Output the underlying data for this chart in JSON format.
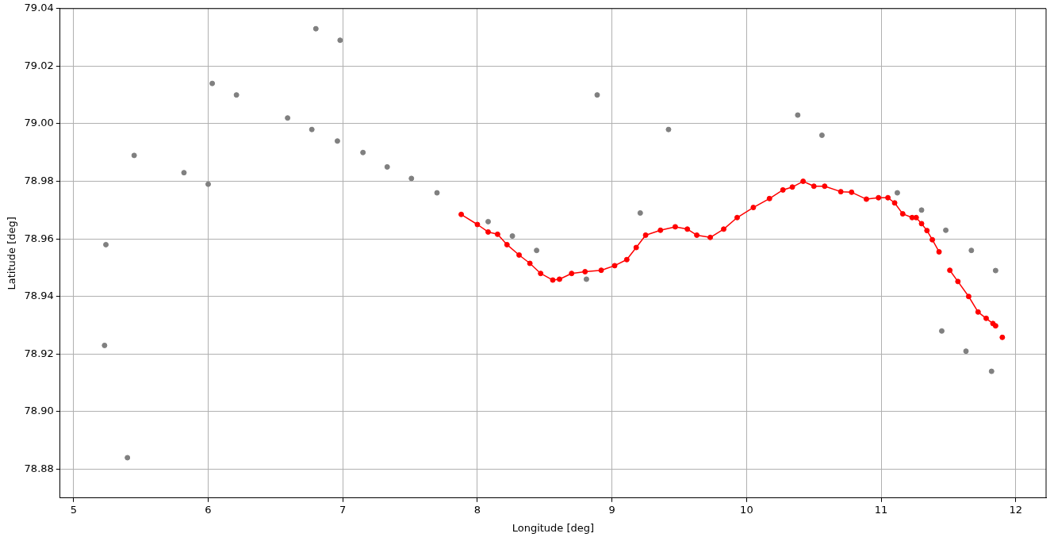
{
  "chart_data": {
    "type": "scatter",
    "xlabel": "Longitude [deg]",
    "ylabel": "Latitude [deg]",
    "xlim": [
      4.9,
      12.225
    ],
    "ylim": [
      78.87,
      79.04
    ],
    "xticks": [
      5,
      6,
      7,
      8,
      9,
      10,
      11,
      12
    ],
    "yticks": [
      {
        "value": 78.88,
        "label": "78.88"
      },
      {
        "value": 78.9,
        "label": "78.90"
      },
      {
        "value": 78.92,
        "label": "78.92"
      },
      {
        "value": 78.94,
        "label": "78.94"
      },
      {
        "value": 78.96,
        "label": "78.96"
      },
      {
        "value": 78.98,
        "label": "78.98"
      },
      {
        "value": 79.0,
        "label": "79.00"
      },
      {
        "value": 79.02,
        "label": "79.02"
      },
      {
        "value": 79.04,
        "label": "79.04"
      }
    ],
    "grid": true,
    "legend": false,
    "marker": "circle",
    "series": [
      {
        "type": "scatter",
        "color": "#808080",
        "x": [
          5.24,
          5.23,
          5.45,
          5.4,
          5.82,
          6.0,
          6.03,
          6.21,
          6.59,
          6.77,
          6.8,
          6.96,
          6.98,
          7.15,
          7.33,
          7.51,
          7.7,
          8.08,
          8.26,
          8.44,
          8.81,
          8.89,
          9.21,
          9.42,
          10.38,
          10.56,
          11.12,
          11.3,
          11.48,
          11.67,
          11.85,
          11.45,
          11.63,
          11.82
        ],
        "values": [
          78.958,
          78.923,
          78.989,
          78.884,
          78.983,
          78.979,
          79.014,
          79.01,
          79.002,
          78.998,
          79.033,
          78.994,
          79.029,
          78.99,
          78.985,
          78.981,
          78.976,
          78.966,
          78.961,
          78.956,
          78.946,
          79.01,
          78.969,
          78.998,
          79.003,
          78.996,
          78.976,
          78.97,
          78.963,
          78.956,
          78.949,
          78.928,
          78.921,
          78.914
        ]
      },
      {
        "type": "line",
        "color": "#ff0000",
        "line_style": "solid",
        "x": [
          7.88,
          8.0,
          8.08,
          8.15,
          8.22,
          8.31,
          8.39,
          8.47,
          8.56,
          8.61,
          8.7,
          8.8,
          8.92,
          9.02,
          9.11,
          9.18,
          9.25,
          9.36,
          9.47,
          9.56,
          9.63,
          9.73,
          9.83,
          9.93,
          10.05,
          10.17,
          10.27,
          10.34,
          10.42,
          10.5,
          10.58,
          10.7,
          10.78,
          10.89,
          10.98,
          11.05,
          11.1,
          11.16,
          11.23,
          11.26,
          11.3,
          11.34,
          11.38,
          11.43,
          11.47,
          11.51,
          11.57,
          11.65,
          11.72,
          11.78,
          11.83,
          11.85,
          11.875,
          11.9
        ],
        "values": [
          78.9685,
          78.965,
          78.9624,
          78.9616,
          78.958,
          78.9544,
          78.9515,
          78.948,
          78.9457,
          78.946,
          78.948,
          78.9486,
          78.9491,
          78.9507,
          78.9528,
          78.957,
          78.9613,
          78.963,
          78.9642,
          78.9634,
          78.9613,
          78.9605,
          78.9634,
          78.9674,
          78.9709,
          78.974,
          78.977,
          78.978,
          78.98,
          78.9783,
          78.9783,
          78.9764,
          78.9762,
          78.9738,
          78.9743,
          78.9743,
          78.9725,
          78.9687,
          78.9674,
          78.9674,
          78.9653,
          78.9629,
          78.9597,
          78.9555,
          null,
          78.9491,
          78.9452,
          78.94,
          78.9346,
          78.9324,
          78.9306,
          78.9298,
          null,
          78.9258
        ]
      }
    ]
  }
}
